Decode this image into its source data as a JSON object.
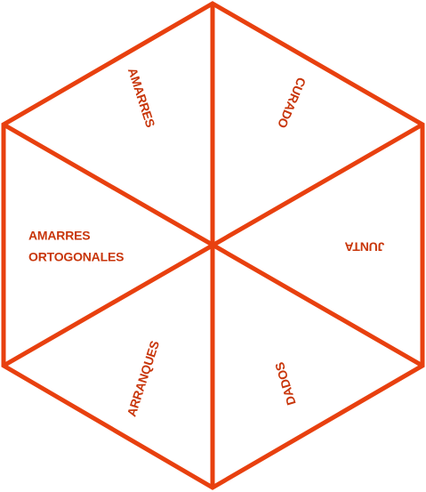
{
  "diagram": {
    "stroke_color": "#e8400f",
    "text_color": "#c8360b",
    "segments": {
      "top_left": "AMARRES",
      "top_right": "CURADO",
      "right": "JUNTA",
      "bottom_right": "DADOS",
      "bottom_left": "ARRANQUES",
      "left_line1": "AMARRES",
      "left_line2": "ORTOGONALES"
    }
  }
}
